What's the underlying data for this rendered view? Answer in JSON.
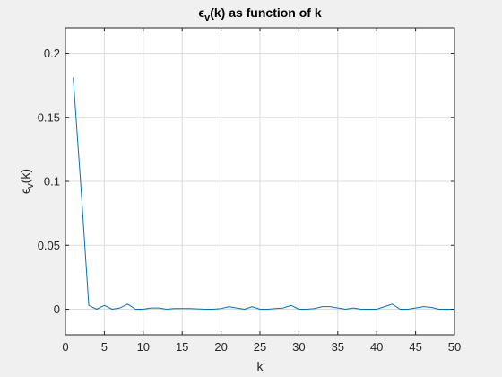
{
  "chart_data": {
    "type": "line",
    "title": "ϵ_v(k) as function of k",
    "title_parts": {
      "pre": "ϵ",
      "sub": "v",
      "post": "(k) as function of k"
    },
    "xlabel": "k",
    "ylabel": "ϵ_v(k)",
    "ylabel_parts": {
      "pre": "ϵ",
      "sub": "v",
      "post": "(k)"
    },
    "xlim": [
      0,
      50
    ],
    "ylim": [
      -0.02,
      0.22
    ],
    "xticks": [
      0,
      5,
      10,
      15,
      20,
      25,
      30,
      35,
      40,
      45,
      50
    ],
    "yticks": [
      0,
      0.05,
      0.1,
      0.15,
      0.2
    ],
    "ytick_labels": [
      "0",
      "0.05",
      "0.1",
      "0.15",
      "0.2"
    ],
    "grid": true,
    "series": [
      {
        "color": "#0072bd",
        "x": [
          1,
          2,
          3,
          4,
          5,
          6,
          7,
          8,
          9,
          10,
          11,
          12,
          13,
          14,
          15,
          16,
          17,
          18,
          19,
          20,
          21,
          22,
          23,
          24,
          25,
          26,
          27,
          28,
          29,
          30,
          31,
          32,
          33,
          34,
          35,
          36,
          37,
          38,
          39,
          40,
          41,
          42,
          43,
          44,
          45,
          46,
          47,
          48,
          49,
          50
        ],
        "y": [
          0.181,
          0.095,
          0.003,
          0.0,
          0.003,
          0.0,
          0.001,
          0.004,
          0.0,
          0.0,
          0.001,
          0.001,
          0.0,
          0.0005,
          0.0005,
          0.0005,
          0.0003,
          0.0,
          0.0,
          0.0005,
          0.002,
          0.001,
          0.0,
          0.002,
          0.0,
          0.0,
          0.0005,
          0.001,
          0.003,
          0.0,
          0.0,
          0.0005,
          0.002,
          0.002,
          0.001,
          0.0,
          0.001,
          0.0,
          0.0,
          0.0,
          0.002,
          0.004,
          0.0,
          0.0,
          0.001,
          0.002,
          0.0015,
          0.0,
          0.0,
          0.0
        ]
      }
    ]
  }
}
